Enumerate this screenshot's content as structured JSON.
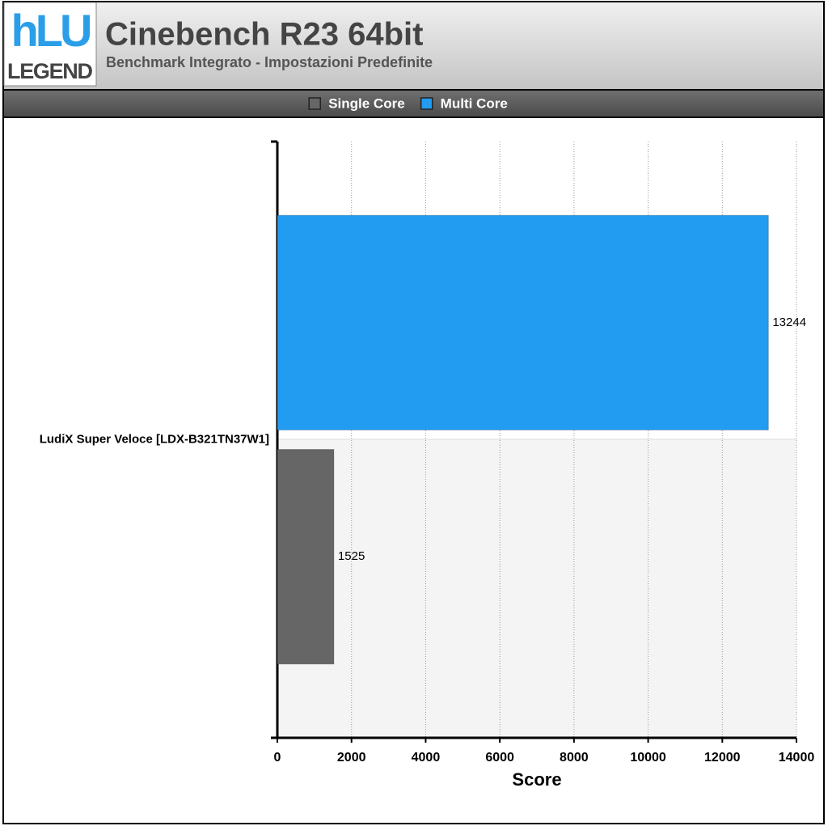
{
  "logo": {
    "mark": "hLU",
    "text": "LEGEND"
  },
  "chart_data": {
    "type": "bar",
    "orientation": "horizontal",
    "title": "Cinebench R23 64bit",
    "subtitle": "Benchmark Integrato - Impostazioni Predefinite",
    "categories": [
      "LudiX Super Veloce [LDX-B321TN37W1]"
    ],
    "series": [
      {
        "name": "Single Core",
        "color": "#666666",
        "values": [
          1525
        ]
      },
      {
        "name": "Multi Core",
        "color": "#229cf0",
        "values": [
          13244
        ]
      }
    ],
    "xlabel": "Score",
    "xlim": [
      0,
      14000
    ],
    "xticks": [
      0,
      2000,
      4000,
      6000,
      8000,
      10000,
      12000,
      14000
    ],
    "grid": true,
    "legend": "top"
  }
}
